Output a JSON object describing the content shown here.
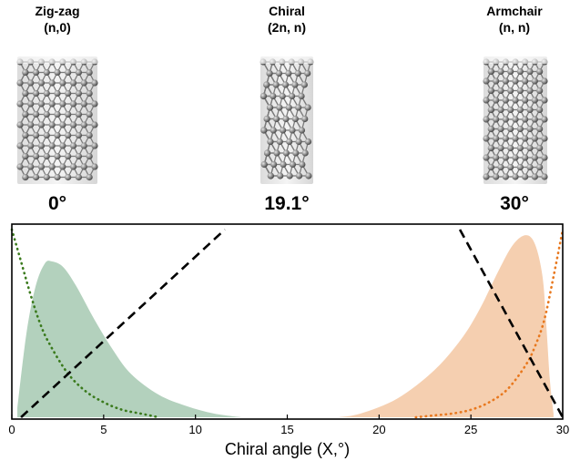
{
  "tubes": [
    {
      "name": "Zig-zag",
      "index": "(n,0)",
      "angle": "0°"
    },
    {
      "name": "Chiral",
      "index": "(2n, n)",
      "angle": "19.1°"
    },
    {
      "name": "Armchair",
      "index": "(n, n)",
      "angle": "30°"
    }
  ],
  "chart_data": {
    "type": "area",
    "xlabel": "Chiral angle (X,°)",
    "ylabel": "",
    "xlim": [
      0,
      30
    ],
    "ylim": [
      0,
      1
    ],
    "xticks": [
      "0",
      "5",
      "10",
      "15",
      "20",
      "25",
      "30"
    ],
    "grid": false,
    "series": [
      {
        "style": "filled-area",
        "color": "#b3d1bd",
        "x": [
          0.3,
          0.8,
          1.3,
          1.8,
          2.2,
          2.8,
          3.5,
          4.5,
          5.5,
          6.5,
          8,
          9.5,
          11,
          12.5
        ],
        "y": [
          0.05,
          0.45,
          0.7,
          0.82,
          0.83,
          0.8,
          0.7,
          0.52,
          0.36,
          0.23,
          0.12,
          0.06,
          0.02,
          0.0
        ]
      },
      {
        "style": "filled-area",
        "color": "#f5cfb0",
        "x": [
          17.8,
          19,
          21,
          23,
          24.5,
          25.5,
          26.5,
          27.3,
          28,
          28.5,
          28.9,
          29.1,
          29.3,
          29.5
        ],
        "y": [
          0.0,
          0.02,
          0.1,
          0.25,
          0.42,
          0.58,
          0.78,
          0.92,
          0.97,
          0.92,
          0.75,
          0.5,
          0.2,
          0.02
        ]
      },
      {
        "style": "dotted",
        "color": "#3a7a1c",
        "x": [
          0,
          0.5,
          1,
          1.5,
          2,
          3,
          4,
          5,
          6,
          7,
          8
        ],
        "y": [
          1.0,
          0.83,
          0.66,
          0.51,
          0.4,
          0.24,
          0.14,
          0.08,
          0.04,
          0.02,
          0.0
        ]
      },
      {
        "style": "dotted",
        "color": "#e8781e",
        "x": [
          22,
          23,
          24,
          25,
          26,
          27,
          28,
          28.5,
          29,
          29.5,
          30
        ],
        "y": [
          0.0,
          0.01,
          0.02,
          0.04,
          0.08,
          0.15,
          0.28,
          0.38,
          0.52,
          0.75,
          1.0
        ]
      },
      {
        "style": "dashed",
        "color": "#000000",
        "x": [
          0.5,
          11.6
        ],
        "y": [
          0.0,
          1.0
        ]
      },
      {
        "style": "dashed",
        "color": "#000000",
        "x": [
          24.4,
          30.0
        ],
        "y": [
          1.0,
          0.0
        ]
      }
    ]
  }
}
